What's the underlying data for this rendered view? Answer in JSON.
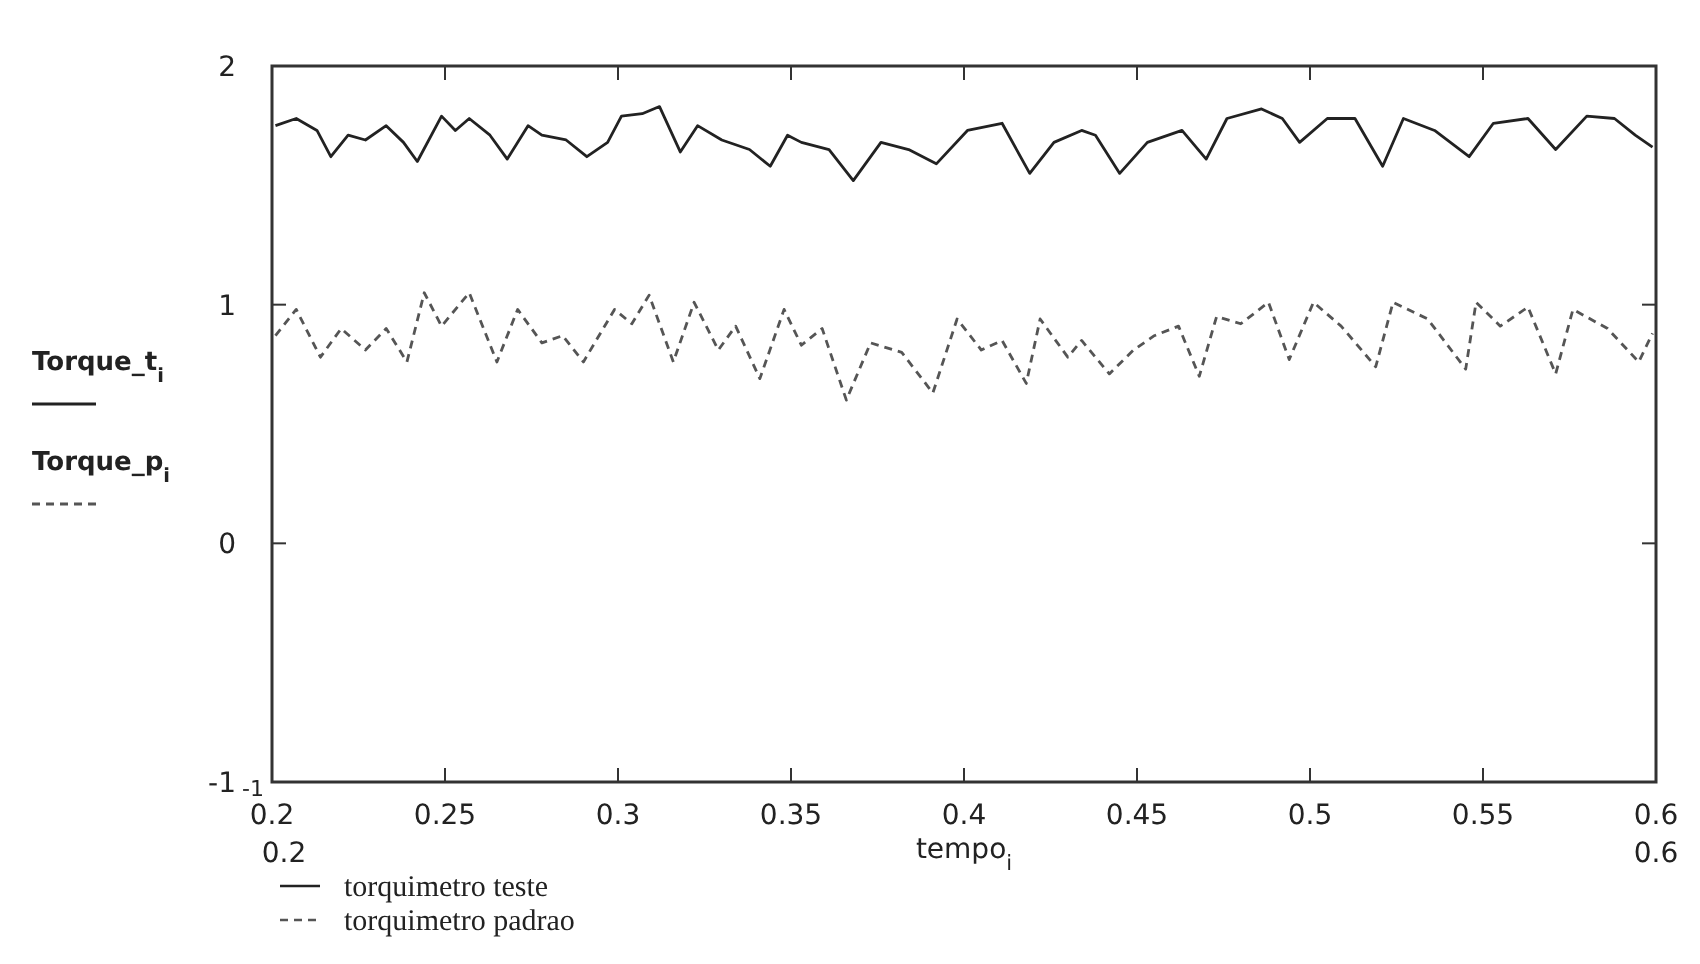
{
  "chart_data": {
    "type": "line",
    "xlabel": "tempo$_{i}$",
    "ylabel": "Torque_t$_{i}$\nTorque_p$_{i}$",
    "xlim": [
      0.2,
      0.6
    ],
    "ylim": [
      -1,
      2
    ],
    "xticks": [
      0.2,
      0.25,
      0.3,
      0.35,
      0.4,
      0.45,
      0.5,
      0.55,
      0.6
    ],
    "yticks": [
      -1,
      0,
      1,
      2
    ],
    "annotations": [
      "-1",
      "0.2",
      "0.6"
    ],
    "legend": "bottom left",
    "series": [
      {
        "name": "torquimetro teste",
        "color": "#222222",
        "line_style": "solid",
        "x": [
          0.201,
          0.207,
          0.213,
          0.217,
          0.222,
          0.227,
          0.233,
          0.238,
          0.242,
          0.249,
          0.253,
          0.257,
          0.263,
          0.268,
          0.274,
          0.278,
          0.285,
          0.291,
          0.297,
          0.301,
          0.307,
          0.312,
          0.318,
          0.323,
          0.33,
          0.338,
          0.344,
          0.349,
          0.353,
          0.361,
          0.368,
          0.376,
          0.384,
          0.392,
          0.401,
          0.411,
          0.419,
          0.426,
          0.434,
          0.438,
          0.445,
          0.453,
          0.463,
          0.47,
          0.476,
          0.486,
          0.492,
          0.497,
          0.505,
          0.513,
          0.521,
          0.527,
          0.536,
          0.546,
          0.553,
          0.563,
          0.571,
          0.58,
          0.588,
          0.594,
          0.599
        ],
        "values": [
          1.75,
          1.78,
          1.73,
          1.62,
          1.71,
          1.69,
          1.75,
          1.68,
          1.6,
          1.79,
          1.73,
          1.78,
          1.71,
          1.61,
          1.75,
          1.71,
          1.69,
          1.62,
          1.68,
          1.79,
          1.8,
          1.83,
          1.64,
          1.75,
          1.69,
          1.65,
          1.58,
          1.71,
          1.68,
          1.65,
          1.52,
          1.68,
          1.65,
          1.59,
          1.73,
          1.76,
          1.55,
          1.68,
          1.73,
          1.71,
          1.55,
          1.68,
          1.73,
          1.61,
          1.78,
          1.82,
          1.78,
          1.68,
          1.78,
          1.78,
          1.58,
          1.78,
          1.73,
          1.62,
          1.76,
          1.78,
          1.65,
          1.79,
          1.78,
          1.71,
          1.66
        ]
      },
      {
        "name": "torquimetro padrao",
        "color": "#555555",
        "line_style": "dashed",
        "x": [
          0.201,
          0.207,
          0.214,
          0.22,
          0.227,
          0.233,
          0.239,
          0.244,
          0.249,
          0.257,
          0.265,
          0.271,
          0.278,
          0.284,
          0.29,
          0.299,
          0.304,
          0.309,
          0.316,
          0.322,
          0.329,
          0.334,
          0.341,
          0.348,
          0.353,
          0.359,
          0.366,
          0.373,
          0.382,
          0.391,
          0.398,
          0.405,
          0.411,
          0.418,
          0.422,
          0.43,
          0.434,
          0.442,
          0.449,
          0.455,
          0.462,
          0.468,
          0.473,
          0.48,
          0.488,
          0.494,
          0.501,
          0.509,
          0.519,
          0.524,
          0.534,
          0.545,
          0.548,
          0.555,
          0.563,
          0.571,
          0.576,
          0.586,
          0.595,
          0.599
        ],
        "values": [
          0.87,
          0.98,
          0.78,
          0.9,
          0.81,
          0.9,
          0.76,
          1.05,
          0.91,
          1.05,
          0.76,
          0.98,
          0.84,
          0.87,
          0.76,
          0.98,
          0.92,
          1.04,
          0.76,
          1.01,
          0.81,
          0.91,
          0.69,
          0.98,
          0.83,
          0.9,
          0.6,
          0.84,
          0.8,
          0.63,
          0.94,
          0.81,
          0.85,
          0.67,
          0.94,
          0.78,
          0.85,
          0.71,
          0.81,
          0.87,
          0.91,
          0.7,
          0.95,
          0.92,
          1.01,
          0.77,
          1.01,
          0.91,
          0.74,
          1.01,
          0.94,
          0.73,
          1.01,
          0.91,
          0.99,
          0.71,
          0.98,
          0.9,
          0.76,
          0.88
        ]
      }
    ]
  }
}
